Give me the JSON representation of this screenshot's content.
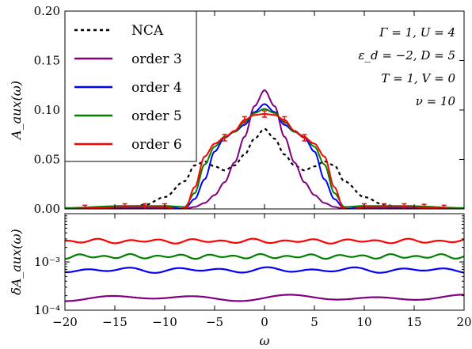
{
  "chart_data": [
    {
      "type": "line",
      "panel": "top",
      "ylabel": "A_aux(ω)",
      "xlim": [
        -20,
        20
      ],
      "ylim": [
        0.0,
        0.2
      ],
      "yticks": [
        "0.00",
        "0.05",
        "0.10",
        "0.15",
        "0.20"
      ],
      "legend": {
        "placement": "top-left"
      },
      "annotations": [
        "Γ = 1,    U = 4",
        "ε_d = −2,  D = 5",
        "T = 1,    V = 0",
        "ν = 10"
      ],
      "series": [
        {
          "name": "NCA",
          "color": "#000000",
          "style": "dashed",
          "x": [
            -20,
            -16,
            -14,
            -12,
            -10,
            -8,
            -7,
            -6,
            -5,
            -4,
            -3,
            -2,
            -1,
            0,
            1,
            2,
            3,
            4,
            5,
            6,
            7,
            8,
            10,
            12,
            14,
            16,
            20
          ],
          "y": [
            0.0,
            0.0,
            0.001,
            0.004,
            0.012,
            0.028,
            0.044,
            0.048,
            0.043,
            0.039,
            0.044,
            0.055,
            0.071,
            0.081,
            0.071,
            0.055,
            0.044,
            0.039,
            0.043,
            0.048,
            0.044,
            0.028,
            0.012,
            0.004,
            0.001,
            0.0,
            0.0
          ]
        },
        {
          "name": "order 3",
          "color": "#800080",
          "style": "solid",
          "x": [
            -20,
            -14,
            -10,
            -8,
            -7,
            -6,
            -5,
            -4,
            -3,
            -2,
            -1,
            0,
            1,
            2,
            3,
            4,
            5,
            6,
            7,
            8,
            10,
            14,
            20
          ],
          "y": [
            0.0,
            0.001,
            0.001,
            0.0,
            0.002,
            0.006,
            0.014,
            0.027,
            0.047,
            0.073,
            0.104,
            0.12,
            0.104,
            0.073,
            0.047,
            0.027,
            0.014,
            0.006,
            0.002,
            0.0,
            0.001,
            0.001,
            0.0
          ]
        },
        {
          "name": "order 4",
          "color": "#0000ff",
          "style": "solid",
          "x": [
            -20,
            -14,
            -10,
            -8,
            -7,
            -6,
            -5,
            -4,
            -3,
            -2,
            -1,
            0,
            1,
            2,
            3,
            4,
            5,
            6,
            7,
            8,
            10,
            14,
            20
          ],
          "y": [
            0.0,
            0.001,
            0.002,
            0.0,
            0.01,
            0.03,
            0.058,
            0.072,
            0.078,
            0.085,
            0.098,
            0.106,
            0.098,
            0.085,
            0.078,
            0.072,
            0.058,
            0.03,
            0.01,
            0.0,
            0.002,
            0.001,
            0.0
          ]
        },
        {
          "name": "order 5",
          "color": "#008000",
          "style": "solid",
          "x": [
            -20,
            -14,
            -10,
            -8,
            -7,
            -6,
            -5,
            -4,
            -3,
            -2,
            -1,
            0,
            1,
            2,
            3,
            4,
            5,
            6,
            7,
            8,
            10,
            14,
            20
          ],
          "y": [
            0.001,
            0.003,
            0.003,
            0.002,
            0.016,
            0.045,
            0.063,
            0.073,
            0.078,
            0.088,
            0.097,
            0.101,
            0.097,
            0.088,
            0.078,
            0.073,
            0.063,
            0.045,
            0.016,
            0.002,
            0.003,
            0.003,
            0.001
          ]
        },
        {
          "name": "order 6",
          "color": "#ff0000",
          "style": "solid",
          "x": [
            -20,
            -14,
            -10,
            -8,
            -7,
            -6,
            -5,
            -4,
            -3,
            -2,
            -1,
            0,
            1,
            2,
            3,
            4,
            5,
            6,
            7,
            8,
            10,
            14,
            20
          ],
          "y": [
            0.0,
            0.002,
            0.002,
            -0.002,
            0.022,
            0.053,
            0.066,
            0.072,
            0.079,
            0.09,
            0.095,
            0.096,
            0.095,
            0.09,
            0.079,
            0.072,
            0.066,
            0.053,
            0.022,
            -0.002,
            0.002,
            0.002,
            0.0
          ],
          "errorbar_x": [
            -18,
            -14,
            -12,
            -10,
            -8,
            -4,
            -2,
            0,
            2,
            4,
            8,
            10,
            12,
            14,
            16,
            18
          ]
        }
      ]
    },
    {
      "type": "line",
      "panel": "bottom",
      "xlabel": "ω",
      "ylabel": "δA_aux(ω)",
      "xlim": [
        -20,
        20
      ],
      "yscale": "log",
      "ylim": [
        0.0001,
        0.01
      ],
      "xticks": [
        "−20",
        "−15",
        "−10",
        "−5",
        "0",
        "5",
        "10",
        "15",
        "20"
      ],
      "yticks": [
        "10⁻⁴",
        "10⁻³"
      ],
      "series": [
        {
          "name": "order 3",
          "color": "#800080",
          "base": 0.00018,
          "amp": 0.07,
          "period": 9
        },
        {
          "name": "order 4",
          "color": "#0000ff",
          "base": 0.00068,
          "amp": 0.06,
          "period": 4.5
        },
        {
          "name": "order 5",
          "color": "#008000",
          "base": 0.0013,
          "amp": 0.05,
          "period": 2.6
        },
        {
          "name": "order 6",
          "color": "#ff0000",
          "base": 0.0027,
          "amp": 0.05,
          "period": 3.1
        }
      ]
    }
  ]
}
